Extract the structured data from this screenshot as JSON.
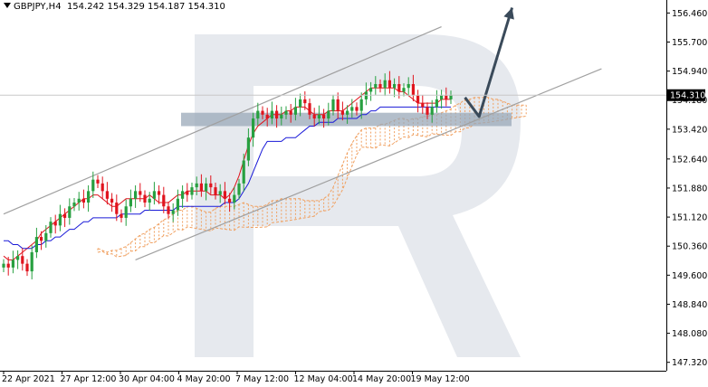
{
  "header": {
    "symbol": "GBPJPY,H4",
    "quote": "154.242 154.329 154.187 154.310"
  },
  "colors": {
    "bull": "#27a040",
    "bear": "#e0141e",
    "tenkan": "#e0141e",
    "kijun": "#1a1ad8",
    "cloud": "#f0a060",
    "channel": "#a0a0a0",
    "arrow": "#3a4a5a",
    "zone": "#9aa8b8",
    "watermark": "#e6e9ee"
  },
  "chart_data": {
    "type": "candlestick",
    "symbol": "GBPJPY",
    "timeframe": "H4",
    "current_price": "154.310",
    "ylim": [
      147.1,
      156.8
    ],
    "y_ticks": [
      "156.460",
      "155.700",
      "154.940",
      "154.180",
      "153.420",
      "152.640",
      "151.880",
      "151.120",
      "150.360",
      "149.600",
      "148.840",
      "148.080",
      "147.320"
    ],
    "x_ticks": [
      "22 Apr 2021",
      "27 Apr 12:00",
      "30 Apr 04:00",
      "4 May 20:00",
      "7 May 12:00",
      "12 May 04:00",
      "14 May 20:00",
      "19 May 12:00"
    ],
    "bar_count": 96,
    "candles_close": [
      149.9,
      149.8,
      150.0,
      150.1,
      149.9,
      149.7,
      150.2,
      150.6,
      150.5,
      150.7,
      151.0,
      150.9,
      151.2,
      151.1,
      151.4,
      151.5,
      151.6,
      151.5,
      151.8,
      152.1,
      152.0,
      151.8,
      151.6,
      151.5,
      151.2,
      151.1,
      151.4,
      151.6,
      151.8,
      151.7,
      151.5,
      151.6,
      151.8,
      151.7,
      151.4,
      151.2,
      151.3,
      151.6,
      151.8,
      151.7,
      151.9,
      152.0,
      151.8,
      152.0,
      151.9,
      151.7,
      151.8,
      151.6,
      151.5,
      151.7,
      152.0,
      152.6,
      153.2,
      153.7,
      153.9,
      153.8,
      153.7,
      153.9,
      153.7,
      153.8,
      153.9,
      153.8,
      154.0,
      154.2,
      154.1,
      153.8,
      153.7,
      153.8,
      153.7,
      153.9,
      154.2,
      153.9,
      153.8,
      153.9,
      154.0,
      153.9,
      154.2,
      154.4,
      154.5,
      154.6,
      154.5,
      154.7,
      154.5,
      154.6,
      154.4,
      154.5,
      154.6,
      154.3,
      154.1,
      154.0,
      153.8,
      154.0,
      154.2,
      154.3,
      154.2,
      154.31
    ],
    "tenkan_sen": [
      150.1,
      150.0,
      150.0,
      150.1,
      150.2,
      150.3,
      150.4,
      150.5,
      150.7,
      150.8,
      150.9,
      151.0,
      151.1,
      151.2,
      151.3,
      151.4,
      151.5,
      151.6,
      151.6,
      151.7,
      151.7,
      151.6,
      151.5,
      151.4,
      151.4,
      151.5,
      151.6,
      151.6,
      151.6,
      151.6,
      151.6,
      151.7,
      151.6,
      151.5,
      151.5,
      151.5,
      151.6,
      151.7,
      151.7,
      151.8,
      151.8,
      151.8,
      151.8,
      151.8,
      151.7,
      151.7,
      151.7,
      151.6,
      151.7,
      151.9,
      152.2,
      152.6,
      153.0,
      153.3,
      153.5,
      153.6,
      153.7,
      153.8,
      153.8,
      153.8,
      153.9,
      153.9,
      154.0,
      154.0,
      154.0,
      153.9,
      153.8,
      153.8,
      153.8,
      153.9,
      153.9,
      153.9,
      153.9,
      154.0,
      154.1,
      154.2,
      154.3,
      154.4,
      154.5,
      154.5,
      154.5,
      154.5,
      154.5,
      154.5,
      154.4,
      154.4,
      154.3,
      154.2,
      154.1,
      154.1,
      154.1,
      154.1,
      154.1,
      154.2,
      154.2,
      154.2
    ],
    "kijun_sen": [
      150.5,
      150.5,
      150.4,
      150.4,
      150.3,
      150.3,
      150.3,
      150.4,
      150.4,
      150.5,
      150.5,
      150.6,
      150.6,
      150.7,
      150.8,
      150.8,
      150.9,
      151.0,
      151.0,
      151.1,
      151.1,
      151.1,
      151.1,
      151.1,
      151.1,
      151.2,
      151.2,
      151.2,
      151.2,
      151.2,
      151.3,
      151.3,
      151.3,
      151.3,
      151.3,
      151.3,
      151.3,
      151.4,
      151.4,
      151.4,
      151.4,
      151.4,
      151.4,
      151.4,
      151.4,
      151.4,
      151.4,
      151.5,
      151.5,
      151.5,
      151.6,
      151.8,
      152.0,
      152.3,
      152.6,
      152.9,
      153.1,
      153.1,
      153.1,
      153.1,
      153.2,
      153.2,
      153.2,
      153.3,
      153.4,
      153.5,
      153.5,
      153.6,
      153.6,
      153.6,
      153.6,
      153.7,
      153.7,
      153.7,
      153.7,
      153.7,
      153.8,
      153.8,
      153.9,
      153.9,
      154.0,
      154.0,
      154.0,
      154.0,
      154.0,
      154.0,
      154.0,
      154.0,
      154.0,
      154.0,
      154.0,
      154.0,
      154.0,
      154.0,
      154.0,
      154.0
    ],
    "channel_upper": [
      [
        0,
        151.2
      ],
      [
        93,
        156.1
      ]
    ],
    "channel_lower": [
      [
        28,
        150.0
      ],
      [
        127,
        155.0
      ]
    ],
    "support_zone": [
      153.5,
      153.85
    ],
    "forecast_path": [
      [
        98,
        154.25
      ],
      [
        101,
        153.75
      ],
      [
        108,
        156.6
      ]
    ]
  }
}
